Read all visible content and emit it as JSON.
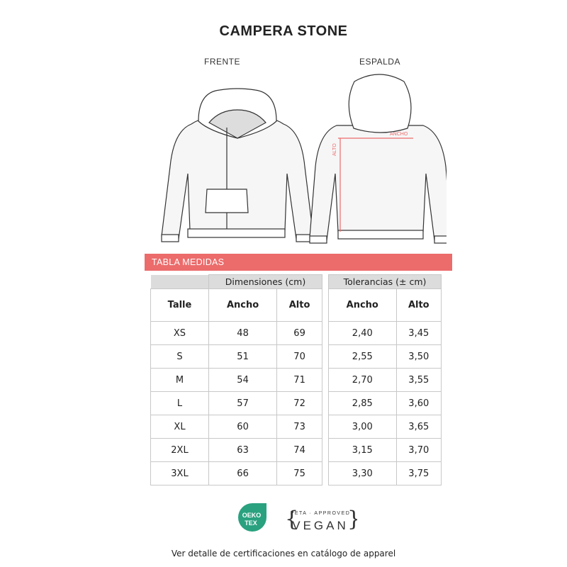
{
  "title": "CAMPERA STONE",
  "views": {
    "front": "FRENTE",
    "back": "ESPALDA",
    "ancho_label": "ANCHO",
    "alto_label": "ALTO"
  },
  "banner": "TABLA MEDIDAS",
  "table": {
    "group_dimensions": "Dimensiones (cm)",
    "group_tolerances": "Tolerancias (± cm)",
    "headers": [
      "Talle",
      "Ancho",
      "Alto",
      "Ancho",
      "Alto"
    ],
    "rows": [
      [
        "XS",
        "48",
        "69",
        "2,40",
        "3,45"
      ],
      [
        "S",
        "51",
        "70",
        "2,55",
        "3,50"
      ],
      [
        "M",
        "54",
        "71",
        "2,70",
        "3,55"
      ],
      [
        "L",
        "57",
        "72",
        "2,85",
        "3,60"
      ],
      [
        "XL",
        "60",
        "73",
        "3,00",
        "3,65"
      ],
      [
        "2XL",
        "63",
        "74",
        "3,15",
        "3,70"
      ],
      [
        "3XL",
        "66",
        "75",
        "3,30",
        "3,75"
      ]
    ]
  },
  "certifications": {
    "oeko": "OEKO TEX",
    "peta_top": "PETA · APPROVED",
    "peta_main": "VEGAN",
    "oeko_color": "#2aa17f"
  },
  "footer": "Ver detalle de certificaciones en catálogo de apparel",
  "colors": {
    "accent": "#ec6b6b"
  }
}
